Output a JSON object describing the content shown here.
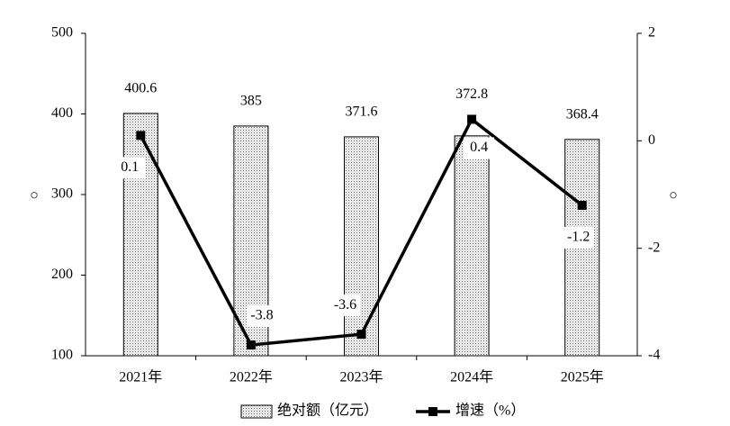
{
  "chart_data": {
    "type": "bar",
    "categories": [
      "2021年",
      "2022年",
      "2023年",
      "2024年",
      "2025年"
    ],
    "ylabel": "○",
    "y2label": "○",
    "series": [
      {
        "name": "绝对额（亿元）",
        "type": "bar",
        "color": "#000000",
        "values": [
          400.6,
          385,
          371.6,
          372.8,
          368.4
        ]
      },
      {
        "name": "增速（%）",
        "type": "line",
        "axis": "y2",
        "color": "#000000",
        "values": [
          0.1,
          -3.8,
          -3.6,
          0.4,
          -1.2
        ]
      }
    ],
    "ylim": [
      100,
      500
    ],
    "yticks": [
      100,
      200,
      300,
      400,
      500
    ],
    "y2lim": [
      -4,
      2
    ],
    "y2ticks": [
      -4,
      -2,
      0,
      2
    ],
    "legend": "bottom"
  }
}
